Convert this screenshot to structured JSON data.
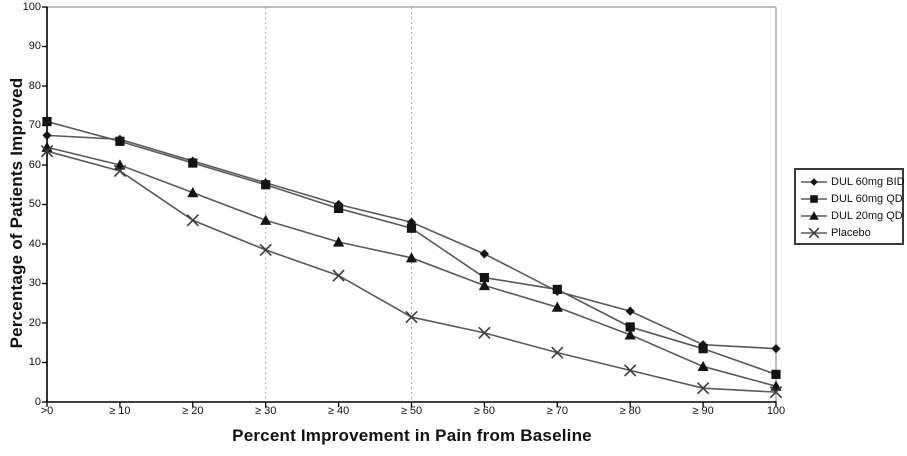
{
  "chart_data": {
    "type": "line",
    "title": "",
    "xlabel": "Percent Improvement in Pain from Baseline",
    "ylabel": "Percentage of Patients Improved",
    "categories": [
      ">0",
      "≥ 10",
      "≥ 20",
      "≥ 30",
      "≥ 40",
      "≥ 50",
      "≥ 60",
      "≥ 70",
      "≥ 80",
      "≥ 90",
      "100"
    ],
    "y_ticks": [
      0,
      10,
      20,
      30,
      40,
      50,
      60,
      70,
      80,
      90,
      100
    ],
    "ylim": [
      0,
      100
    ],
    "grid": "vertical dashed reference lines only",
    "dashed_gridlines_at_indices": [
      3,
      5
    ],
    "dashed_gridline_categories": [
      "≥ 30",
      "≥ 50"
    ],
    "legend_position": "right-outside",
    "series": [
      {
        "name": "DUL 60mg BID",
        "marker": "diamond",
        "values": [
          67.5,
          66.5,
          61,
          55.5,
          50,
          45.5,
          37.5,
          28,
          23,
          14.5,
          13.5
        ]
      },
      {
        "name": "DUL 60mg QD",
        "marker": "square",
        "values": [
          71,
          66,
          60.5,
          55,
          49,
          44,
          31.5,
          28.5,
          19,
          13.5,
          7
        ]
      },
      {
        "name": "DUL 20mg QD",
        "marker": "triangle",
        "values": [
          64.5,
          60,
          53,
          46,
          40.5,
          36.5,
          29.5,
          24,
          17,
          9,
          4
        ]
      },
      {
        "name": "Placebo",
        "marker": "x",
        "values": [
          63.5,
          58.5,
          46,
          38.5,
          32,
          21.5,
          17.5,
          12.5,
          8,
          3.5,
          2.5
        ]
      }
    ],
    "colors": {
      "line": "#5a5a5a",
      "marker": "#141414",
      "x_marker": "#3d3d3d",
      "axis": "#000000",
      "frame": "#9a9a9a",
      "dashed_line": "#a8a8a8",
      "background": "#ffffff"
    }
  }
}
